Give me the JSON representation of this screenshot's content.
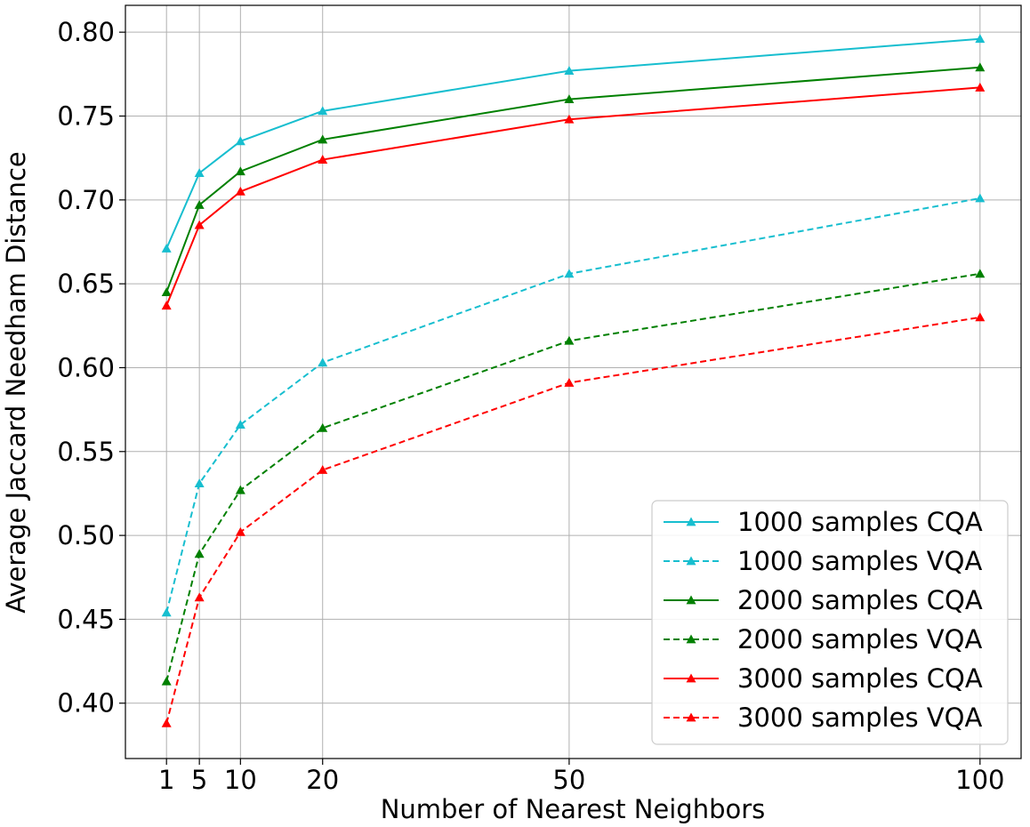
{
  "chart_data": {
    "type": "line",
    "title": "",
    "xlabel": "Number of Nearest Neighbors",
    "ylabel": "Average Jaccard Needham Distance",
    "x": [
      1,
      5,
      10,
      20,
      50,
      100
    ],
    "x_tick_labels": [
      "1",
      "5",
      "10",
      "20",
      "50",
      "100"
    ],
    "y_ticks": [
      0.4,
      0.45,
      0.5,
      0.55,
      0.6,
      0.65,
      0.7,
      0.75,
      0.8
    ],
    "y_tick_labels": [
      "0.40",
      "0.45",
      "0.50",
      "0.55",
      "0.60",
      "0.65",
      "0.70",
      "0.75",
      "0.80"
    ],
    "xlim": [
      -4,
      105
    ],
    "ylim": [
      0.367,
      0.816
    ],
    "grid": true,
    "legend_position": "lower-right",
    "series": [
      {
        "name": "1000 samples CQA",
        "color": "#17becf",
        "style": "solid",
        "marker": "triangle",
        "values": [
          0.671,
          0.716,
          0.735,
          0.753,
          0.777,
          0.796
        ]
      },
      {
        "name": "1000 samples VQA",
        "color": "#17becf",
        "style": "dashed",
        "marker": "triangle",
        "values": [
          0.454,
          0.531,
          0.566,
          0.603,
          0.656,
          0.701
        ]
      },
      {
        "name": "2000 samples CQA",
        "color": "#008000",
        "style": "solid",
        "marker": "triangle",
        "values": [
          0.645,
          0.697,
          0.717,
          0.736,
          0.76,
          0.779
        ]
      },
      {
        "name": "2000 samples VQA",
        "color": "#008000",
        "style": "dashed",
        "marker": "triangle",
        "values": [
          0.413,
          0.489,
          0.527,
          0.564,
          0.616,
          0.656
        ]
      },
      {
        "name": "3000 samples CQA",
        "color": "#ff0000",
        "style": "solid",
        "marker": "triangle",
        "values": [
          0.637,
          0.685,
          0.705,
          0.724,
          0.748,
          0.767
        ]
      },
      {
        "name": "3000 samples VQA",
        "color": "#ff0000",
        "style": "dashed",
        "marker": "triangle",
        "values": [
          0.388,
          0.463,
          0.502,
          0.539,
          0.591,
          0.63
        ]
      }
    ]
  }
}
